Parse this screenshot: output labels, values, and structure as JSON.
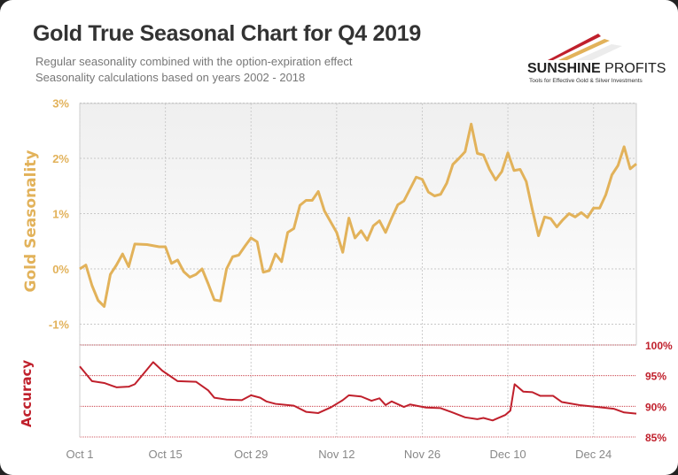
{
  "title": "Gold True Seasonal Chart for Q4 2019",
  "subtitle_lines": [
    "Regular seasonality combined with the option-expiration effect",
    "Seasonality calculations based on years 2002 - 2018"
  ],
  "logo": {
    "name_bold": "SUNSHINE",
    "name_regular": "PROFITS",
    "tagline": "Tools for Effective Gold & Silver Investments"
  },
  "colors": {
    "gold": "#e2b25a",
    "accuracy": "#c0202c",
    "title": "#333333",
    "grid": "#c8c8c8"
  },
  "chart_data": [
    {
      "type": "line",
      "title": "Gold Seasonality",
      "ylabel": "Gold Seasonality",
      "xlabel": "",
      "ylim": [
        -1,
        3
      ],
      "yticks": [
        3,
        2,
        1,
        0,
        -1
      ],
      "ytick_labels": [
        "3%",
        "2%",
        "1%",
        "0%",
        "-1%"
      ],
      "x_unit": "days since Oct 1",
      "xlim": [
        0,
        91
      ],
      "xticks": [
        0,
        14,
        28,
        42,
        56,
        70,
        84
      ],
      "xtick_labels": [
        "Oct 1",
        "Oct 15",
        "Oct 29",
        "Nov 12",
        "Nov 26",
        "Dec 10",
        "Dec 24"
      ],
      "grid": true,
      "x": [
        0,
        1,
        2,
        3,
        4,
        5,
        6,
        7,
        8,
        9,
        11,
        13,
        14,
        15,
        16,
        17,
        18,
        19,
        20,
        21,
        22,
        23,
        24,
        25,
        26,
        27,
        28,
        29,
        30,
        31,
        32,
        33,
        34,
        35,
        36,
        37,
        38,
        39,
        40,
        42,
        43,
        44,
        45,
        46,
        47,
        48,
        49,
        50,
        51,
        52,
        53,
        55,
        56,
        57,
        58,
        59,
        60,
        61,
        62,
        63,
        64,
        65,
        66,
        67,
        68,
        69,
        70,
        71,
        72,
        73,
        74,
        75,
        76,
        77,
        78,
        79,
        80,
        81,
        82,
        83,
        84,
        85,
        86,
        87,
        88,
        89,
        90,
        91
      ],
      "values": [
        0.0,
        0.07,
        -0.3,
        -0.57,
        -0.68,
        -0.1,
        0.07,
        0.27,
        0.04,
        0.45,
        0.44,
        0.4,
        0.4,
        0.1,
        0.16,
        -0.05,
        -0.15,
        -0.1,
        0.0,
        -0.27,
        -0.56,
        -0.58,
        0.0,
        0.22,
        0.25,
        0.41,
        0.56,
        0.49,
        -0.06,
        -0.03,
        0.27,
        0.13,
        0.66,
        0.73,
        1.15,
        1.24,
        1.24,
        1.4,
        1.05,
        0.66,
        0.3,
        0.92,
        0.56,
        0.69,
        0.52,
        0.78,
        0.87,
        0.66,
        0.92,
        1.16,
        1.23,
        1.66,
        1.62,
        1.39,
        1.32,
        1.35,
        1.55,
        1.89,
        2.0,
        2.12,
        2.62,
        2.09,
        2.06,
        1.8,
        1.61,
        1.76,
        2.1,
        1.78,
        1.8,
        1.58,
        1.07,
        0.6,
        0.94,
        0.91,
        0.76,
        0.89,
        1.0,
        0.94,
        1.02,
        0.93,
        1.1,
        1.1,
        1.34,
        1.7,
        1.87,
        2.21,
        1.81,
        1.9
      ]
    },
    {
      "type": "line",
      "title": "Accuracy",
      "ylabel": "Accuracy",
      "ylim": [
        85,
        100
      ],
      "yticks": [
        100,
        95,
        90,
        85
      ],
      "ytick_labels": [
        "100%",
        "95%",
        "90%",
        "85%"
      ],
      "xlim": [
        0,
        91
      ],
      "grid": true,
      "x": [
        0,
        2,
        4,
        6,
        8,
        9,
        12,
        13.5,
        16,
        19,
        21,
        22,
        24,
        26.5,
        28,
        29.5,
        30.5,
        32,
        35,
        37,
        39,
        41,
        43,
        44,
        46,
        47.7,
        49,
        50,
        51,
        53,
        54,
        56.6,
        59,
        60.4,
        63,
        65,
        66,
        67.5,
        69.6,
        70.4,
        71.1,
        72.5,
        74,
        75.3,
        77.4,
        78.8,
        81.7,
        84.5,
        87.3,
        89,
        91
      ],
      "values": [
        96.5,
        94.1,
        93.8,
        93.1,
        93.2,
        93.6,
        97.2,
        95.8,
        94.1,
        94.0,
        92.6,
        91.4,
        91.1,
        91.0,
        91.8,
        91.4,
        90.8,
        90.4,
        90.1,
        89.1,
        88.9,
        89.8,
        91.0,
        91.8,
        91.6,
        90.9,
        91.3,
        90.2,
        90.8,
        89.9,
        90.3,
        89.8,
        89.7,
        89.2,
        88.2,
        87.9,
        88.1,
        87.7,
        88.6,
        89.3,
        93.6,
        92.4,
        92.3,
        91.7,
        91.7,
        90.7,
        90.2,
        89.9,
        89.6,
        89.0,
        88.8
      ]
    }
  ]
}
